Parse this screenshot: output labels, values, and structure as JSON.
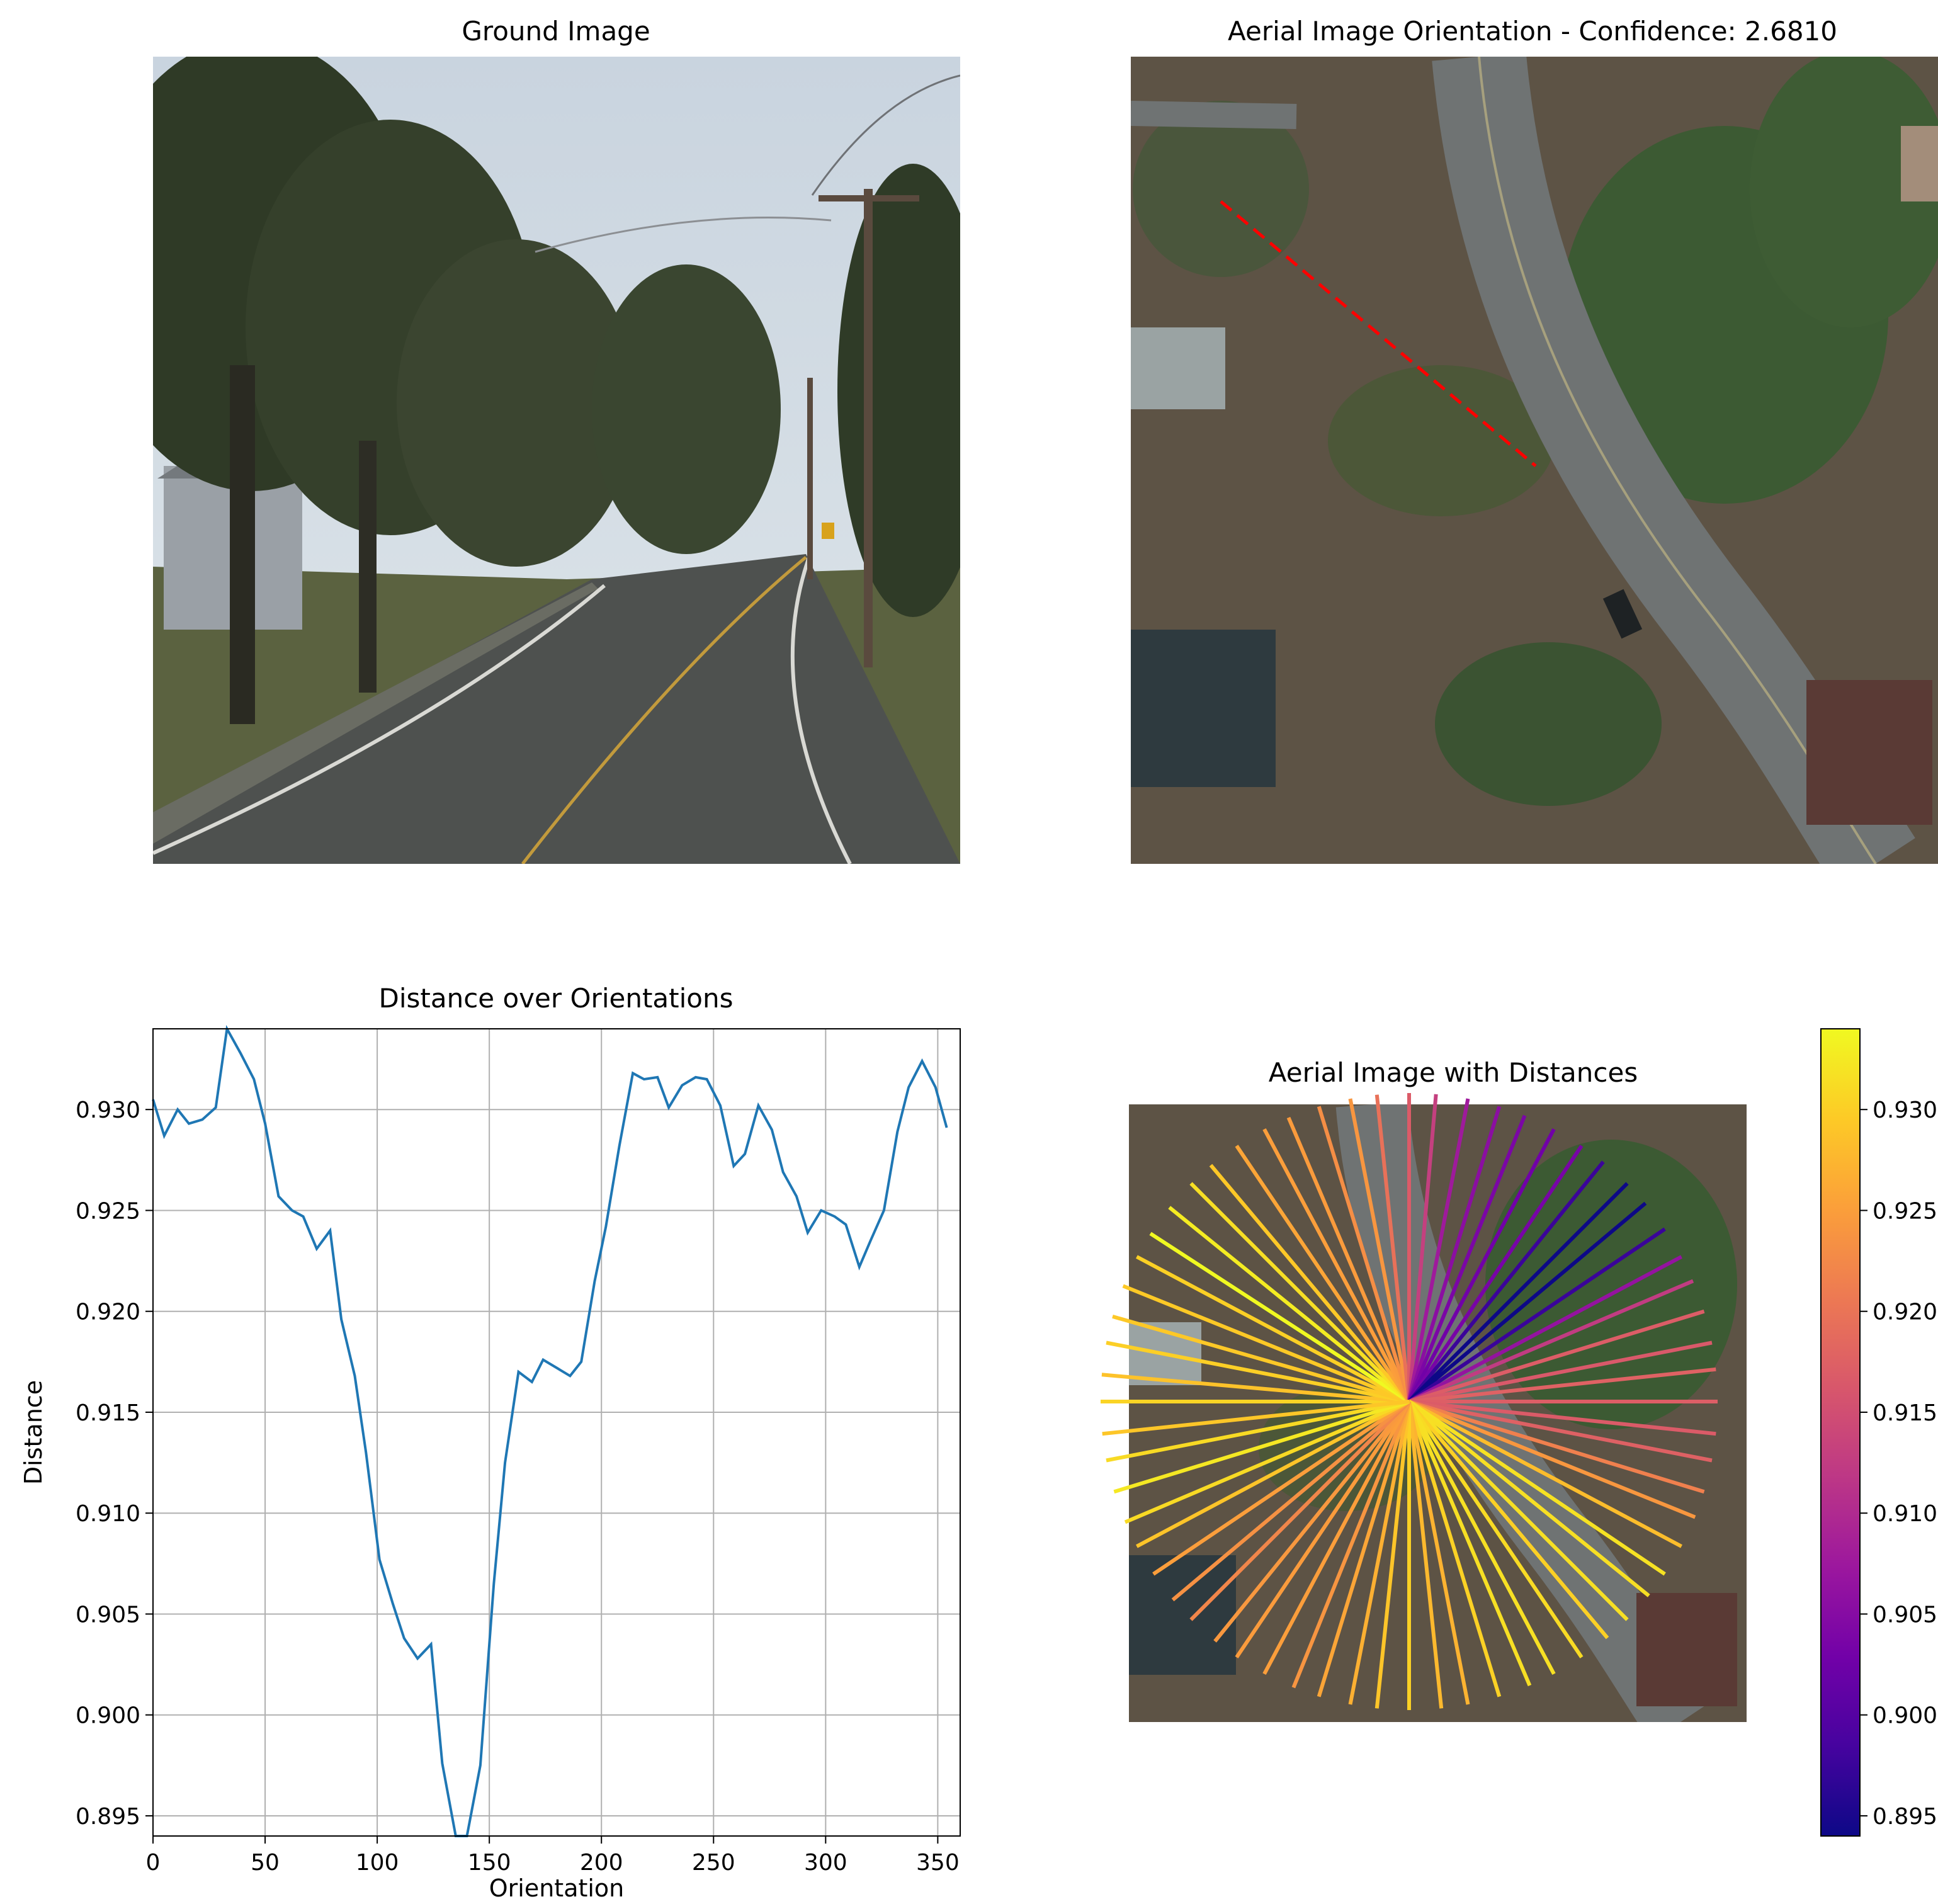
{
  "panels": {
    "ground": {
      "title": "Ground Image"
    },
    "aerial_orientation": {
      "title": "Aerial Image Orientation - Confidence: 2.6810"
    },
    "aerial_distances": {
      "title": "Aerial Image with Distances"
    }
  },
  "colors": {
    "line": "#1f77b4",
    "orientation_marker": "#ff0000",
    "grid": "#b0b0b0",
    "colormap": "plasma",
    "colormap_stops": [
      "#0d0887",
      "#46039f",
      "#7201a8",
      "#9c179e",
      "#bd3786",
      "#d8576b",
      "#ed7953",
      "#fb9f3a",
      "#fdca26",
      "#f0f921"
    ]
  },
  "chart_data": [
    {
      "type": "line",
      "title": "Distance over Orientations",
      "xlabel": "Orientation",
      "ylabel": "Distance",
      "xlim": [
        0,
        360
      ],
      "ylim": [
        0.894,
        0.934
      ],
      "grid": true,
      "xticks": [
        0,
        50,
        100,
        150,
        200,
        250,
        300,
        350
      ],
      "yticks": [
        0.895,
        0.9,
        0.905,
        0.91,
        0.915,
        0.92,
        0.925,
        0.93
      ],
      "ytick_labels": [
        "0.895",
        "0.900",
        "0.905",
        "0.910",
        "0.915",
        "0.920",
        "0.925",
        "0.930"
      ],
      "series": [
        {
          "x": [
            0,
            5,
            11,
            16,
            22,
            28,
            33,
            39,
            45,
            50,
            56,
            62,
            67,
            73,
            79,
            84,
            90,
            95,
            101,
            107,
            112,
            118,
            124,
            129,
            135,
            140,
            146,
            152,
            157,
            163,
            169,
            174,
            180,
            186,
            191,
            197,
            202,
            208,
            214,
            219,
            225,
            230,
            236,
            242,
            247,
            253,
            259,
            264,
            270,
            276,
            281,
            287,
            292,
            298,
            304,
            309,
            315,
            320,
            326,
            332,
            337,
            343,
            349,
            354
          ],
          "y": [
            0.9305,
            0.9287,
            0.93,
            0.9293,
            0.9295,
            0.9301,
            0.934,
            0.9328,
            0.9315,
            0.9293,
            0.9257,
            0.925,
            0.9247,
            0.9231,
            0.924,
            0.9196,
            0.9168,
            0.913,
            0.9077,
            0.9055,
            0.9038,
            0.9028,
            0.9035,
            0.8976,
            0.894,
            0.894,
            0.8975,
            0.9065,
            0.9125,
            0.917,
            0.9165,
            0.9176,
            0.9172,
            0.9168,
            0.9175,
            0.9215,
            0.9242,
            0.9282,
            0.9318,
            0.9315,
            0.9316,
            0.9301,
            0.9312,
            0.9316,
            0.9315,
            0.9302,
            0.9272,
            0.9278,
            0.9302,
            0.929,
            0.9269,
            0.9257,
            0.9239,
            0.925,
            0.9247,
            0.9243,
            0.9222,
            0.9235,
            0.925,
            0.9289,
            0.9311,
            0.9324,
            0.9311,
            0.9291
          ]
        }
      ]
    },
    {
      "type": "colorbar",
      "range": [
        0.894,
        0.934
      ],
      "ticks": [
        0.895,
        0.9,
        0.905,
        0.91,
        0.915,
        0.92,
        0.925,
        0.93
      ],
      "tick_labels": [
        "0.895",
        "0.900",
        "0.905",
        "0.910",
        "0.915",
        "0.920",
        "0.925",
        "0.930"
      ]
    }
  ]
}
